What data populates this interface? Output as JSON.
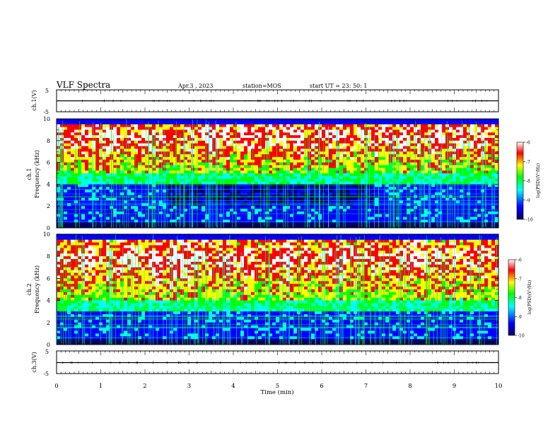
{
  "header": {
    "title": "VLF Spectra",
    "date": "Apr.3 , 2023",
    "station": "station=MOS",
    "start_time": "start UT = 23: 50: 1"
  },
  "colors": {
    "colormap": [
      "#000066",
      "#0000ff",
      "#00ffff",
      "#00ff00",
      "#ffff00",
      "#ff0000",
      "#ffffff"
    ],
    "trace": "#000000",
    "axis": "#000000"
  },
  "chart_data": [
    {
      "type": "line",
      "name": "ch1-voltage",
      "ylabel": "ch.1(V)",
      "ylim": [
        -5,
        5
      ],
      "yticks": [
        "5",
        "-5"
      ],
      "x": [
        0,
        10
      ],
      "values": [
        0,
        0
      ]
    },
    {
      "type": "heatmap",
      "name": "ch1-spectrogram",
      "ylabel": "ch.1\nFrequency (kHz)",
      "ylim": [
        0,
        10
      ],
      "yticks": [
        "0",
        "2",
        "4",
        "6",
        "8",
        "10"
      ],
      "xlim": [
        0,
        10
      ],
      "intense_band_khz": [
        5,
        10
      ],
      "colorbar": {
        "label": "log(PSD)(V²/Hz)",
        "range": [
          -10,
          -6
        ],
        "ticks": [
          "-6",
          "-7",
          "-8",
          "-9",
          "-10"
        ]
      }
    },
    {
      "type": "heatmap",
      "name": "ch2-spectrogram",
      "ylabel": "ch.2\nFrequency (kHz)",
      "ylim": [
        0,
        10
      ],
      "yticks": [
        "0",
        "2",
        "4",
        "6",
        "8",
        "10"
      ],
      "xlim": [
        0,
        10
      ],
      "intense_band_khz": [
        4,
        10
      ],
      "colorbar": {
        "label": "log(PSD)(V²/Hz)",
        "range": [
          -10,
          -6
        ],
        "ticks": [
          "-6",
          "-7",
          "-8",
          "-9",
          "-10"
        ]
      }
    },
    {
      "type": "line",
      "name": "ch3-voltage",
      "ylabel": "ch.3(V)",
      "ylim": [
        -5,
        5
      ],
      "yticks": [
        "5",
        "-5"
      ],
      "x": [
        0,
        10
      ],
      "values": [
        0,
        0
      ]
    }
  ],
  "xaxis": {
    "label": "Time (min)",
    "range": [
      0,
      10
    ],
    "ticks": [
      "0",
      "1",
      "2",
      "3",
      "4",
      "5",
      "6",
      "7",
      "8",
      "9",
      "10"
    ]
  }
}
